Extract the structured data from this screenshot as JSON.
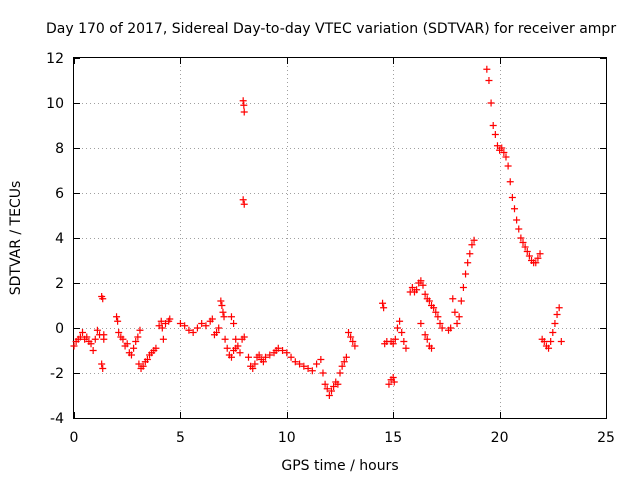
{
  "chart_data": {
    "type": "scatter",
    "title": "Day 170 of 2017, Sidereal Day-to-day VTEC variation (SDTVAR) for receiver ampr",
    "xlabel": "GPS time / hours",
    "ylabel": "SDTVAR / TECUs",
    "xlim": [
      0,
      25
    ],
    "ylim": [
      -4,
      12
    ],
    "xticks": [
      "0",
      "5",
      "10",
      "15",
      "20",
      "25"
    ],
    "yticks": [
      "-4",
      "-2",
      "0",
      "2",
      "4",
      "6",
      "8",
      "10",
      "12"
    ],
    "grid": true,
    "marker": "plus",
    "color": "#ff0000",
    "series": [
      {
        "name": "SDTVAR",
        "points": [
          [
            0.0,
            -0.8
          ],
          [
            0.1,
            -0.6
          ],
          [
            0.2,
            -0.5
          ],
          [
            0.3,
            -0.4
          ],
          [
            0.4,
            -0.2
          ],
          [
            0.5,
            -0.5
          ],
          [
            0.6,
            -0.4
          ],
          [
            0.7,
            -0.6
          ],
          [
            0.8,
            -0.7
          ],
          [
            0.9,
            -1.0
          ],
          [
            1.0,
            -0.5
          ],
          [
            1.1,
            -0.1
          ],
          [
            1.2,
            -0.3
          ],
          [
            1.3,
            1.4
          ],
          [
            1.35,
            1.3
          ],
          [
            1.3,
            -1.6
          ],
          [
            1.35,
            -1.8
          ],
          [
            1.4,
            -0.5
          ],
          [
            1.4,
            -0.3
          ],
          [
            2.0,
            0.5
          ],
          [
            2.05,
            0.3
          ],
          [
            2.1,
            -0.2
          ],
          [
            2.2,
            -0.4
          ],
          [
            2.3,
            -0.5
          ],
          [
            2.4,
            -0.8
          ],
          [
            2.5,
            -0.7
          ],
          [
            2.6,
            -1.1
          ],
          [
            2.7,
            -1.2
          ],
          [
            2.8,
            -0.9
          ],
          [
            2.9,
            -0.6
          ],
          [
            3.0,
            -0.4
          ],
          [
            3.1,
            -0.1
          ],
          [
            3.05,
            -1.6
          ],
          [
            3.15,
            -1.8
          ],
          [
            3.25,
            -1.7
          ],
          [
            3.35,
            -1.5
          ],
          [
            3.45,
            -1.4
          ],
          [
            3.55,
            -1.2
          ],
          [
            3.65,
            -1.1
          ],
          [
            3.75,
            -1.0
          ],
          [
            3.85,
            -0.9
          ],
          [
            4.0,
            0.1
          ],
          [
            4.1,
            0.3
          ],
          [
            4.15,
            0.0
          ],
          [
            4.2,
            -0.5
          ],
          [
            4.3,
            0.2
          ],
          [
            4.45,
            0.3
          ],
          [
            4.5,
            0.4
          ],
          [
            5.0,
            0.2
          ],
          [
            5.2,
            0.1
          ],
          [
            5.4,
            -0.1
          ],
          [
            5.6,
            -0.2
          ],
          [
            5.8,
            0.0
          ],
          [
            6.0,
            0.2
          ],
          [
            6.2,
            0.1
          ],
          [
            6.4,
            0.3
          ],
          [
            6.5,
            0.4
          ],
          [
            6.6,
            -0.3
          ],
          [
            6.7,
            -0.2
          ],
          [
            6.8,
            0.0
          ],
          [
            6.9,
            1.2
          ],
          [
            6.95,
            1.0
          ],
          [
            7.0,
            0.7
          ],
          [
            7.05,
            0.5
          ],
          [
            7.1,
            -0.5
          ],
          [
            7.2,
            -0.9
          ],
          [
            7.3,
            -1.2
          ],
          [
            7.4,
            -1.3
          ],
          [
            7.5,
            -1.0
          ],
          [
            7.6,
            -0.9
          ],
          [
            7.7,
            -0.8
          ],
          [
            7.8,
            -1.1
          ],
          [
            7.9,
            -0.5
          ],
          [
            8.0,
            -0.4
          ],
          [
            7.4,
            0.5
          ],
          [
            7.5,
            0.2
          ],
          [
            7.6,
            -0.5
          ],
          [
            7.95,
            10.1
          ],
          [
            7.98,
            9.9
          ],
          [
            8.0,
            9.6
          ],
          [
            7.95,
            5.7
          ],
          [
            8.0,
            5.5
          ],
          [
            8.2,
            -1.3
          ],
          [
            8.3,
            -1.7
          ],
          [
            8.4,
            -1.8
          ],
          [
            8.5,
            -1.6
          ],
          [
            8.6,
            -1.3
          ],
          [
            8.7,
            -1.2
          ],
          [
            8.8,
            -1.4
          ],
          [
            8.9,
            -1.5
          ],
          [
            9.0,
            -1.3
          ],
          [
            9.2,
            -1.2
          ],
          [
            9.4,
            -1.1
          ],
          [
            9.5,
            -1.0
          ],
          [
            9.6,
            -0.9
          ],
          [
            9.8,
            -1.0
          ],
          [
            10.0,
            -1.1
          ],
          [
            10.2,
            -1.3
          ],
          [
            10.4,
            -1.5
          ],
          [
            10.6,
            -1.6
          ],
          [
            10.8,
            -1.7
          ],
          [
            11.0,
            -1.8
          ],
          [
            11.2,
            -1.9
          ],
          [
            11.4,
            -1.6
          ],
          [
            11.6,
            -1.4
          ],
          [
            11.7,
            -2.0
          ],
          [
            11.8,
            -2.5
          ],
          [
            11.9,
            -2.7
          ],
          [
            12.0,
            -3.0
          ],
          [
            12.1,
            -2.8
          ],
          [
            12.2,
            -2.6
          ],
          [
            12.3,
            -2.4
          ],
          [
            12.4,
            -2.5
          ],
          [
            12.5,
            -2.0
          ],
          [
            12.6,
            -1.7
          ],
          [
            12.7,
            -1.5
          ],
          [
            12.8,
            -1.3
          ],
          [
            12.9,
            -0.2
          ],
          [
            13.0,
            -0.4
          ],
          [
            13.1,
            -0.6
          ],
          [
            13.2,
            -0.8
          ],
          [
            14.5,
            1.1
          ],
          [
            14.55,
            0.9
          ],
          [
            14.6,
            -0.7
          ],
          [
            14.7,
            -0.6
          ],
          [
            14.8,
            -2.5
          ],
          [
            14.9,
            -2.3
          ],
          [
            15.0,
            -2.2
          ],
          [
            15.05,
            -2.4
          ],
          [
            14.9,
            -0.6
          ],
          [
            15.0,
            -0.7
          ],
          [
            15.1,
            -0.5
          ],
          [
            15.2,
            0.0
          ],
          [
            15.3,
            0.3
          ],
          [
            15.4,
            -0.2
          ],
          [
            15.5,
            -0.6
          ],
          [
            15.6,
            -0.9
          ],
          [
            15.8,
            1.6
          ],
          [
            15.9,
            1.8
          ],
          [
            16.0,
            1.6
          ],
          [
            16.1,
            1.7
          ],
          [
            16.2,
            2.0
          ],
          [
            16.3,
            2.1
          ],
          [
            16.4,
            1.9
          ],
          [
            16.5,
            1.5
          ],
          [
            16.6,
            1.3
          ],
          [
            16.7,
            1.2
          ],
          [
            16.8,
            1.0
          ],
          [
            16.9,
            0.9
          ],
          [
            17.0,
            0.7
          ],
          [
            17.1,
            0.5
          ],
          [
            17.2,
            0.2
          ],
          [
            17.3,
            0.0
          ],
          [
            16.3,
            0.2
          ],
          [
            16.5,
            -0.3
          ],
          [
            16.6,
            -0.5
          ],
          [
            16.7,
            -0.8
          ],
          [
            16.8,
            -0.9
          ],
          [
            17.6,
            -0.1
          ],
          [
            17.7,
            0.0
          ],
          [
            17.8,
            1.3
          ],
          [
            17.9,
            0.7
          ],
          [
            18.0,
            0.2
          ],
          [
            18.1,
            0.5
          ],
          [
            18.2,
            1.2
          ],
          [
            18.3,
            1.8
          ],
          [
            18.4,
            2.4
          ],
          [
            18.5,
            2.9
          ],
          [
            18.6,
            3.3
          ],
          [
            18.7,
            3.7
          ],
          [
            18.8,
            3.9
          ],
          [
            19.4,
            11.5
          ],
          [
            19.5,
            11.0
          ],
          [
            19.6,
            10.0
          ],
          [
            19.7,
            9.0
          ],
          [
            19.8,
            8.6
          ],
          [
            19.9,
            8.1
          ],
          [
            20.0,
            7.9
          ],
          [
            20.1,
            8.0
          ],
          [
            20.2,
            7.8
          ],
          [
            20.3,
            7.6
          ],
          [
            20.4,
            7.2
          ],
          [
            20.5,
            6.5
          ],
          [
            20.6,
            5.8
          ],
          [
            20.7,
            5.3
          ],
          [
            20.8,
            4.8
          ],
          [
            20.9,
            4.4
          ],
          [
            21.0,
            4.0
          ],
          [
            21.1,
            3.8
          ],
          [
            21.2,
            3.6
          ],
          [
            21.3,
            3.4
          ],
          [
            21.4,
            3.2
          ],
          [
            21.5,
            3.0
          ],
          [
            21.6,
            2.9
          ],
          [
            21.7,
            2.9
          ],
          [
            21.8,
            3.1
          ],
          [
            21.9,
            3.3
          ],
          [
            22.0,
            -0.5
          ],
          [
            22.1,
            -0.6
          ],
          [
            22.2,
            -0.8
          ],
          [
            22.3,
            -0.9
          ],
          [
            22.4,
            -0.6
          ],
          [
            22.5,
            -0.2
          ],
          [
            22.6,
            0.2
          ],
          [
            22.7,
            0.6
          ],
          [
            22.8,
            0.9
          ],
          [
            22.9,
            -0.6
          ]
        ]
      }
    ]
  }
}
